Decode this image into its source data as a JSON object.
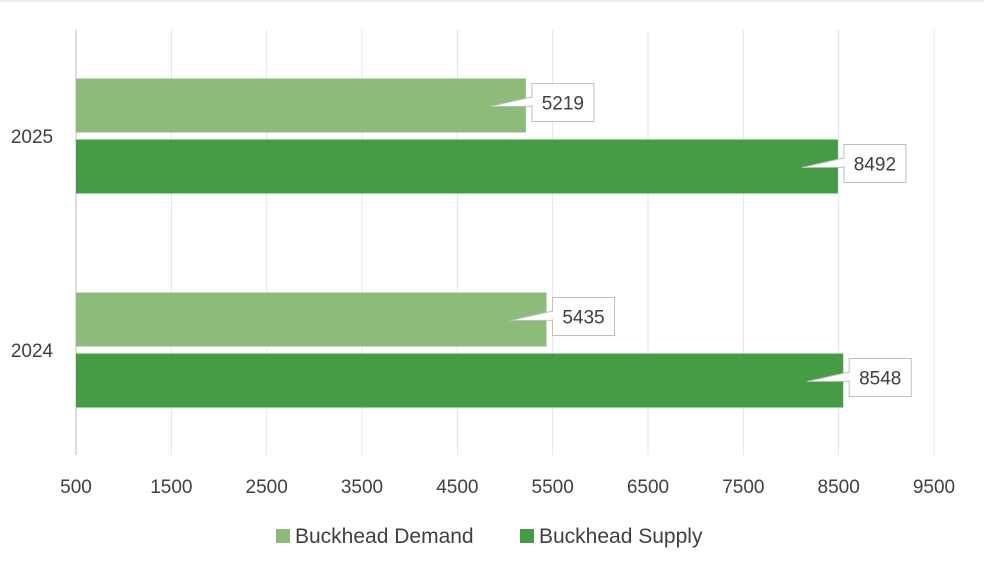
{
  "chart_data": {
    "type": "bar",
    "orientation": "horizontal",
    "categories": [
      "2025",
      "2024"
    ],
    "series": [
      {
        "name": "Buckhead Demand",
        "values": [
          5219,
          5435
        ],
        "color": "#8cbb7a"
      },
      {
        "name": "Buckhead Supply",
        "values": [
          8492,
          8548
        ],
        "color": "#459c45"
      }
    ],
    "xlim": [
      500,
      9500
    ],
    "x_ticks": [
      500,
      1500,
      2500,
      3500,
      4500,
      5500,
      6500,
      7500,
      8500,
      9500
    ],
    "x_tick_labels": [
      "500",
      "1500",
      "2500",
      "3500",
      "4500",
      "5500",
      "6500",
      "7500",
      "8500",
      "9500"
    ],
    "grid": true,
    "legend_position": "bottom",
    "data_labels": true,
    "title": "",
    "xlabel": "",
    "ylabel": ""
  }
}
